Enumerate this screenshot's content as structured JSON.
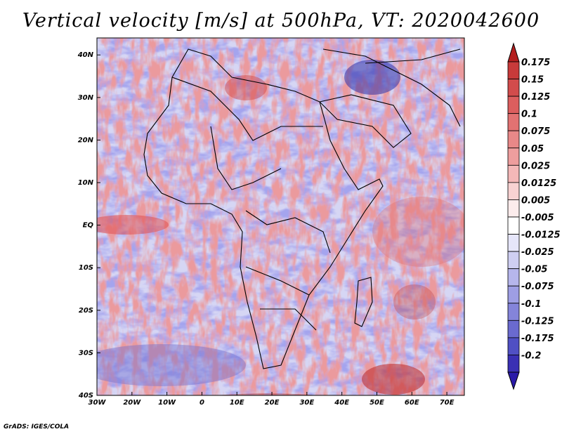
{
  "title": "Vertical velocity [m/s] at 500hPa, VT: 2020042600",
  "footer": "GrADS: IGES/COLA",
  "map": {
    "lon_range": [
      -30,
      75
    ],
    "lat_range": [
      -40,
      44
    ],
    "lon_ticks": [
      {
        "value": -30,
        "label": "30W"
      },
      {
        "value": -20,
        "label": "20W"
      },
      {
        "value": -10,
        "label": "10W"
      },
      {
        "value": 0,
        "label": "0"
      },
      {
        "value": 10,
        "label": "10E"
      },
      {
        "value": 20,
        "label": "20E"
      },
      {
        "value": 30,
        "label": "30E"
      },
      {
        "value": 40,
        "label": "40E"
      },
      {
        "value": 50,
        "label": "50E"
      },
      {
        "value": 60,
        "label": "60E"
      },
      {
        "value": 70,
        "label": "70E"
      }
    ],
    "lat_ticks": [
      {
        "value": 40,
        "label": "40N"
      },
      {
        "value": 30,
        "label": "30N"
      },
      {
        "value": 20,
        "label": "20N"
      },
      {
        "value": 10,
        "label": "10N"
      },
      {
        "value": 0,
        "label": "EQ"
      },
      {
        "value": -10,
        "label": "10S"
      },
      {
        "value": -20,
        "label": "20S"
      },
      {
        "value": -30,
        "label": "30S"
      },
      {
        "value": -40,
        "label": "40S"
      }
    ]
  },
  "colorbar": {
    "top_triangle_color": "#b41e1e",
    "bottom_triangle_color": "#2a1aa8",
    "bins": [
      {
        "color": "#c83a3a",
        "label": "0.175"
      },
      {
        "color": "#d24c4c",
        "label": "0.15"
      },
      {
        "color": "#dc5e5e",
        "label": "0.125"
      },
      {
        "color": "#e27272",
        "label": "0.1"
      },
      {
        "color": "#e88888",
        "label": "0.075"
      },
      {
        "color": "#ee9e9e",
        "label": "0.05"
      },
      {
        "color": "#f4b8b8",
        "label": "0.025"
      },
      {
        "color": "#f8d2d2",
        "label": "0.0125"
      },
      {
        "color": "#fcecec",
        "label": "0.005"
      },
      {
        "color": "#ffffff",
        "label": "-0.005"
      },
      {
        "color": "#e6e6fa",
        "label": "-0.0125"
      },
      {
        "color": "#cfcff2",
        "label": "-0.025"
      },
      {
        "color": "#b6b6ec",
        "label": "-0.05"
      },
      {
        "color": "#9e9ee4",
        "label": "-0.075"
      },
      {
        "color": "#8484da",
        "label": "-0.1"
      },
      {
        "color": "#6a6acf",
        "label": "-0.125"
      },
      {
        "color": "#5050c4",
        "label": "-0.175"
      },
      {
        "color": "#3a30b4",
        "label": "-0.2"
      }
    ]
  }
}
